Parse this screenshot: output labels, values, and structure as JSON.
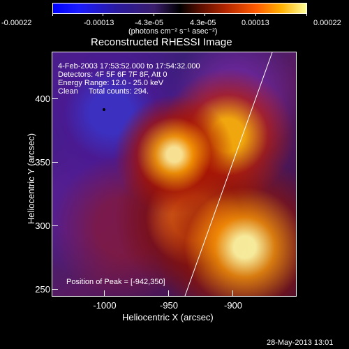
{
  "colorbar": {
    "tick_labels": [
      "-0.00022",
      "-0.00013",
      "-4.3e-05",
      "4.3e-05",
      "0.00013",
      "0.00022"
    ],
    "unit_label": "(photons cm⁻² s⁻¹ asec⁻²)"
  },
  "title": "Reconstructed RHESSI Image",
  "info": {
    "time_range": "4-Feb-2003 17:53:52.000 to 17:54:32.000",
    "detectors": "Detectors: 4F 5F 6F 7F 8F, Att 0",
    "energy": "Energy Range: 12.0 - 25.0 keV",
    "clean": "Clean     Total counts: 294."
  },
  "peak_label": "Position of Peak = [-942,350]",
  "axes": {
    "xlabel": "Heliocentric X (arcsec)",
    "ylabel": "Heliocentric Y (arcsec)",
    "x_ticks": [
      "-1000",
      "-950",
      "-900"
    ],
    "y_ticks": [
      "400",
      "350",
      "300",
      "250"
    ]
  },
  "footer_timestamp": "28-May-2013 13:01"
}
